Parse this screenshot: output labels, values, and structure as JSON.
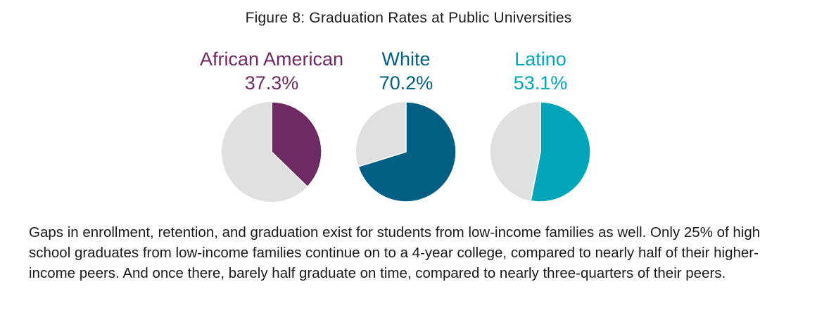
{
  "figure": {
    "title": "Figure 8:  Graduation Rates at Public Universities"
  },
  "chart_data": {
    "type": "pie",
    "title": "Figure 8:  Graduation Rates at Public Universities",
    "remainder_color": "#e0e0e0",
    "series": [
      {
        "name": "African American",
        "value_label": "37.3%",
        "value": 37.3,
        "color": "#6e2a63"
      },
      {
        "name": "White",
        "value_label": "70.2%",
        "value": 70.2,
        "color": "#005f83"
      },
      {
        "name": "Latino",
        "value_label": "53.1%",
        "value": 53.1,
        "color": "#00a6b8"
      }
    ]
  },
  "body": {
    "paragraph": "Gaps in enrollment, retention, and graduation exist for students from low-income families as well. Only 25% of high school graduates from low-income families continue on to a 4-year college, compared to nearly half of their higher-income peers. And once there, barely half graduate on time, compared to nearly three-quarters of their peers."
  }
}
